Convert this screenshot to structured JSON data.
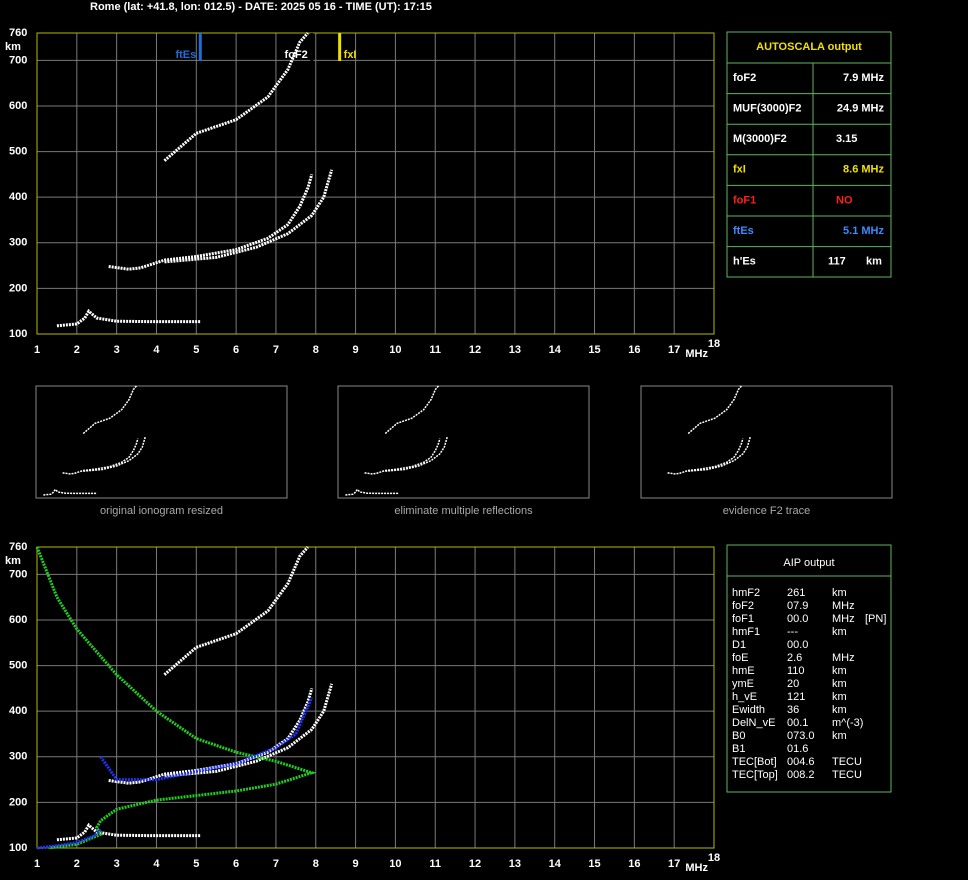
{
  "header": {
    "title": "Rome (lat: +41.8, lon: 012.5) - DATE: 2025 05 16 - TIME (UT): 17:15"
  },
  "chart_data": [
    {
      "type": "line",
      "x_label": "MHz",
      "y_label": "km",
      "xlim": [
        1,
        18
      ],
      "ylim": [
        100,
        760
      ],
      "xticks": [
        1,
        2,
        3,
        4,
        5,
        6,
        7,
        8,
        9,
        10,
        11,
        12,
        13,
        14,
        15,
        16,
        17,
        18
      ],
      "yticks": [
        100,
        200,
        300,
        400,
        500,
        600,
        700,
        760
      ],
      "grid": true,
      "series": [
        {
          "color": "#ffffff",
          "x": [
            1.5,
            2,
            2.2,
            2.3,
            2.5,
            3,
            4,
            5.1
          ],
          "values": [
            118,
            122,
            135,
            150,
            135,
            128,
            127,
            127
          ]
        },
        {
          "color": "#ffffff",
          "x": [
            2.8,
            3.3,
            3.6,
            4.2,
            5,
            6,
            6.8,
            7.3,
            7.6,
            7.8,
            7.9
          ],
          "values": [
            248,
            242,
            245,
            262,
            270,
            285,
            310,
            340,
            380,
            420,
            450
          ]
        },
        {
          "color": "#ffffff",
          "x": [
            4.2,
            5.5,
            6.5,
            7.3,
            7.9,
            8.2,
            8.4
          ],
          "values": [
            258,
            268,
            290,
            320,
            360,
            400,
            460
          ]
        },
        {
          "color": "#ffffff",
          "x": [
            4.2,
            5,
            6,
            6.8,
            7.3,
            7.6,
            7.8
          ],
          "values": [
            480,
            540,
            570,
            620,
            680,
            740,
            760
          ]
        }
      ],
      "markers": [
        {
          "label": "ftEs",
          "value": 5.1,
          "color": "#1e6fd9"
        },
        {
          "label": "foF2",
          "value": 7.9,
          "color": "#000000"
        },
        {
          "label": "fxI",
          "value": 8.6,
          "color": "#f0e000"
        }
      ]
    },
    {
      "type": "line",
      "x_label": "MHz",
      "y_label": "km",
      "xlim": [
        1,
        18
      ],
      "ylim": [
        100,
        760
      ],
      "xticks": [
        1,
        2,
        3,
        4,
        5,
        6,
        7,
        8,
        9,
        10,
        11,
        12,
        13,
        14,
        15,
        16,
        17,
        18
      ],
      "yticks": [
        100,
        200,
        300,
        400,
        500,
        600,
        700,
        760
      ],
      "grid": true,
      "series": [
        {
          "color": "#ffffff",
          "x": [
            1.5,
            2,
            2.2,
            2.3,
            2.5,
            3,
            4,
            5.1
          ],
          "values": [
            118,
            122,
            135,
            150,
            135,
            128,
            127,
            127
          ]
        },
        {
          "color": "#ffffff",
          "x": [
            2.8,
            3.3,
            3.6,
            4.2,
            5,
            6,
            6.8,
            7.3,
            7.6,
            7.8,
            7.9
          ],
          "values": [
            248,
            242,
            245,
            262,
            270,
            285,
            310,
            340,
            380,
            420,
            450
          ]
        },
        {
          "color": "#ffffff",
          "x": [
            4.2,
            5.5,
            6.5,
            7.3,
            7.9,
            8.2,
            8.4
          ],
          "values": [
            258,
            268,
            290,
            320,
            360,
            400,
            460
          ]
        },
        {
          "color": "#ffffff",
          "x": [
            4.2,
            5,
            6,
            6.8,
            7.3,
            7.6,
            7.8
          ],
          "values": [
            480,
            540,
            570,
            620,
            680,
            740,
            760
          ]
        },
        {
          "color": "#22cc22",
          "x": [
            1,
            1.5,
            2,
            3,
            4,
            5,
            6,
            7,
            7.9,
            7,
            6,
            5,
            4,
            3,
            2.6,
            2.5,
            2.6,
            2,
            1.3
          ],
          "values": [
            760,
            650,
            580,
            480,
            400,
            340,
            310,
            290,
            265,
            240,
            225,
            215,
            205,
            185,
            160,
            145,
            130,
            108,
            100
          ]
        },
        {
          "color": "#2233ff",
          "x": [
            1,
            1.5,
            2,
            2.4,
            2.6
          ],
          "values": [
            100,
            105,
            112,
            125,
            140
          ]
        },
        {
          "color": "#2233ff",
          "x": [
            2.6,
            3,
            4,
            5,
            6,
            7,
            7.5,
            7.9
          ],
          "values": [
            300,
            250,
            250,
            268,
            285,
            320,
            350,
            430
          ]
        }
      ]
    }
  ],
  "thumbnails": [
    {
      "caption": "original ionogram resized"
    },
    {
      "caption": "eliminate multiple reflections"
    },
    {
      "caption": "evidence F2 trace"
    }
  ],
  "autoscala": {
    "title": "AUTOSCALA output",
    "rows": [
      {
        "label": "foF2",
        "value": "7.9 MHz",
        "color": "#ffffff"
      },
      {
        "label": "MUF(3000)F2",
        "value": "24.9 MHz",
        "color": "#ffffff"
      },
      {
        "label": "M(3000)F2",
        "value": "3.15",
        "color": "#ffffff"
      },
      {
        "label": "fxI",
        "value": "8.6 MHz",
        "color": "#f0e000"
      },
      {
        "label": "foF1",
        "value": "NO",
        "color": "#ff2020"
      },
      {
        "label": "ftEs",
        "value": "5.1 MHz",
        "color": "#3a8cff"
      },
      {
        "label": "h'Es",
        "value": "117",
        "unit": "km",
        "color": "#ffffff"
      }
    ]
  },
  "aip": {
    "title": "AIP output",
    "rows": [
      [
        "hmF2",
        "261",
        "km"
      ],
      [
        "foF2",
        "07.9",
        "MHz"
      ],
      [
        "foF1",
        "00.0",
        "MHz",
        "[PN]"
      ],
      [
        "hmF1",
        "---",
        "km"
      ],
      [
        "D1",
        "00.0"
      ],
      [
        "foE",
        "2.6",
        "MHz"
      ],
      [
        "hmE",
        "110",
        "km"
      ],
      [
        "ymE",
        "20",
        "km"
      ],
      [
        "h_vE",
        "121",
        "km"
      ],
      [
        "Ewidth",
        "36",
        "km"
      ],
      [
        "DelN_vE",
        "00.1",
        "m^(-3)"
      ],
      [
        "B0",
        "073.0",
        "km"
      ],
      [
        "B1",
        "01.6"
      ],
      [
        "TEC[Bot]",
        "004.6",
        "TECU"
      ],
      [
        "TEC[Top]",
        "008.2",
        "TECU"
      ]
    ]
  }
}
